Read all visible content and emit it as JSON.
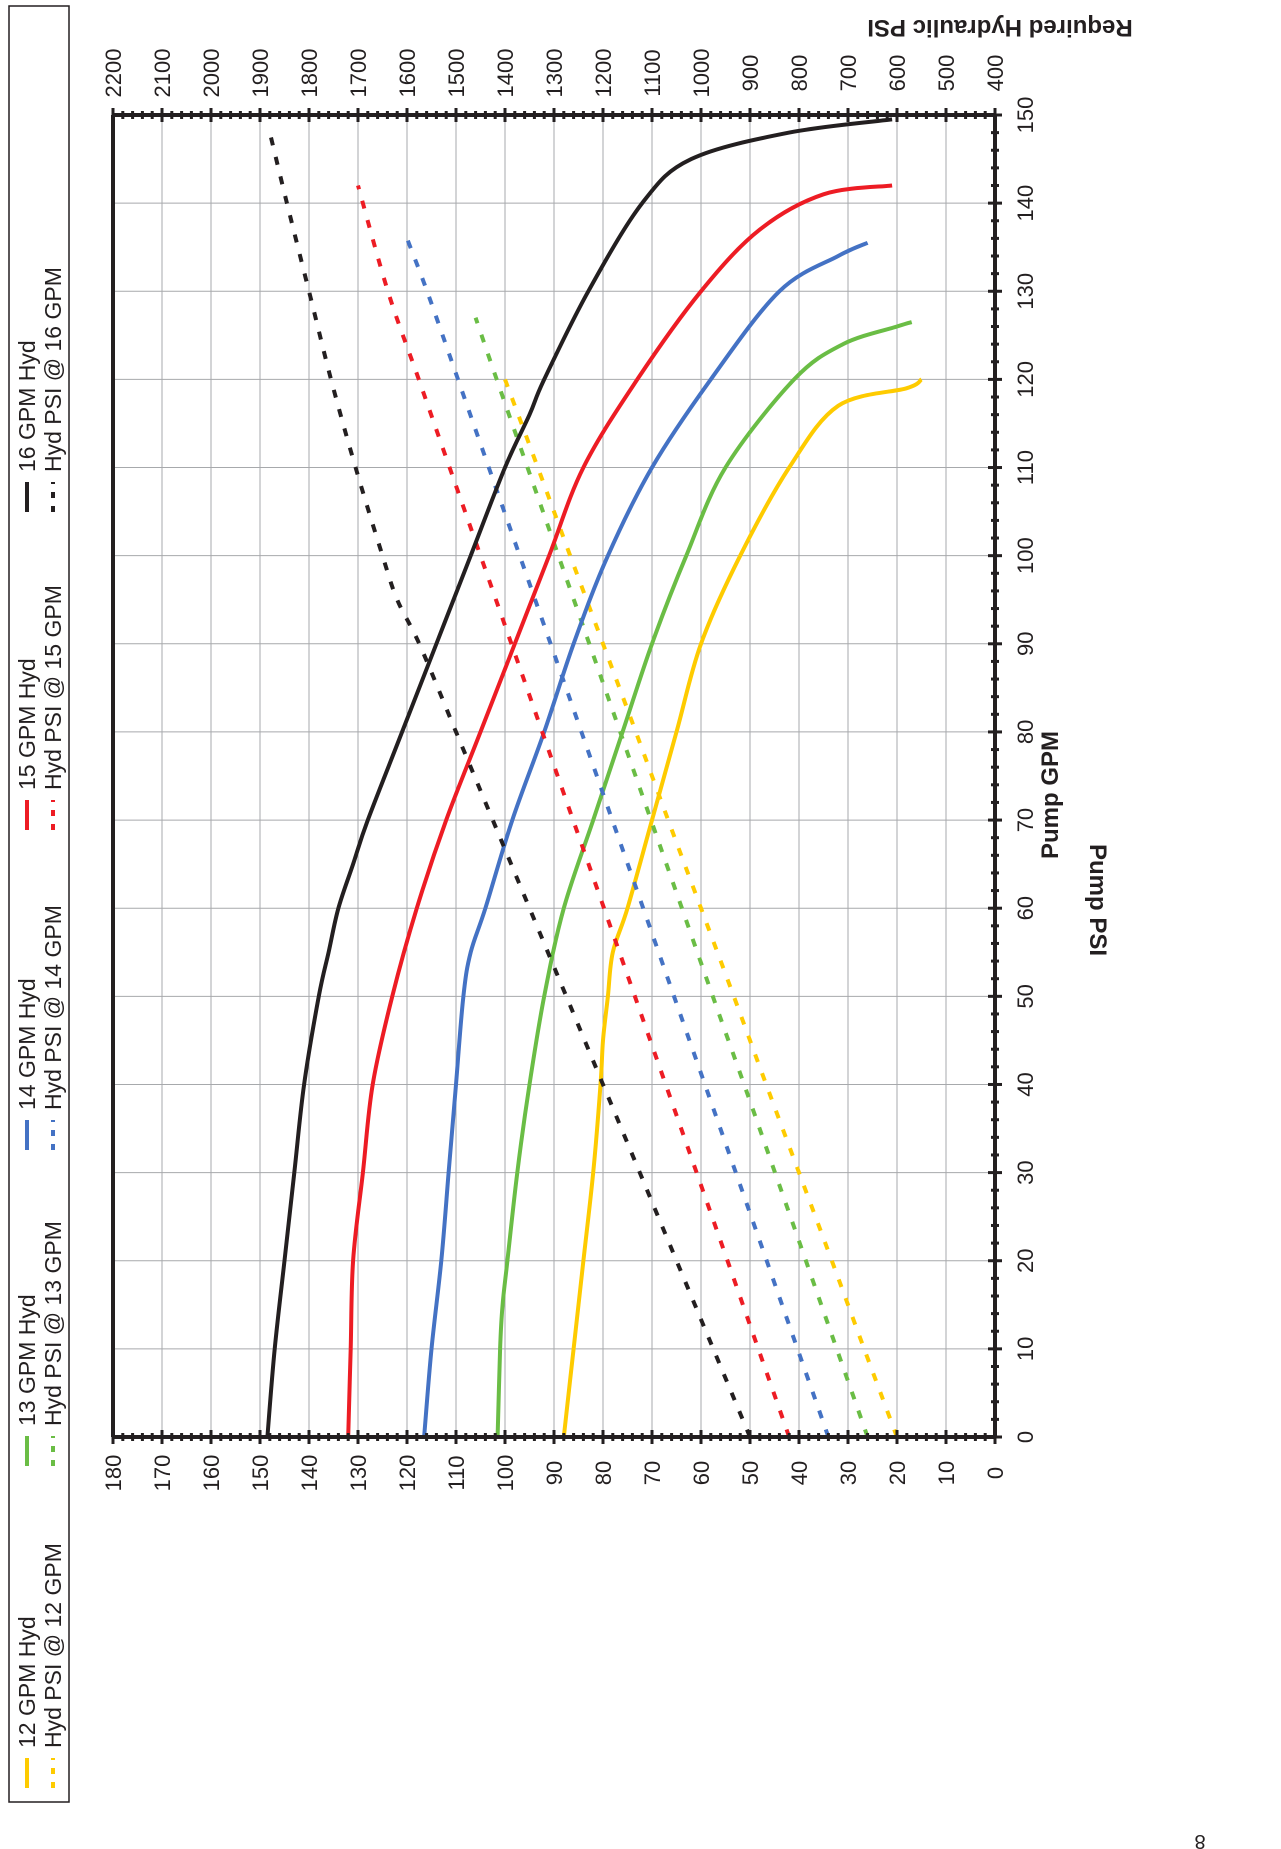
{
  "page_number": "8",
  "chart_data": {
    "type": "line",
    "orientation": "rotated-90-clockwise",
    "xlabel": "Pump GPM",
    "ylabel": "Pump PSI",
    "y2label": "Required Hydraulic PSI",
    "xlim": [
      0,
      150
    ],
    "ylim": [
      0,
      180
    ],
    "y2lim": [
      400,
      2200
    ],
    "x_ticks": [
      0,
      10,
      20,
      30,
      40,
      50,
      60,
      70,
      80,
      90,
      100,
      110,
      120,
      130,
      140,
      150
    ],
    "y_ticks": [
      0,
      10,
      20,
      30,
      40,
      50,
      60,
      70,
      80,
      90,
      100,
      110,
      120,
      130,
      140,
      150,
      160,
      170,
      180
    ],
    "y2_ticks": [
      400,
      500,
      600,
      700,
      800,
      900,
      1000,
      1100,
      1200,
      1300,
      1400,
      1500,
      1600,
      1700,
      1800,
      1900,
      2000,
      2100,
      2200
    ],
    "grid": true,
    "legend_position": "top",
    "series": [
      {
        "name": "12 GPM Hyd",
        "axis": "left",
        "style": "solid",
        "color": "#fecb00",
        "points": [
          [
            0,
            88
          ],
          [
            10,
            86
          ],
          [
            20,
            84
          ],
          [
            30,
            82
          ],
          [
            40,
            80.5
          ],
          [
            45,
            80
          ],
          [
            50,
            79
          ],
          [
            55,
            78
          ],
          [
            60,
            75
          ],
          [
            70,
            70
          ],
          [
            80,
            65
          ],
          [
            90,
            60
          ],
          [
            100,
            52
          ],
          [
            110,
            42
          ],
          [
            117,
            32
          ],
          [
            119,
            18
          ],
          [
            120,
            15
          ]
        ]
      },
      {
        "name": "Hyd PSI @ 12 GPM",
        "axis": "right",
        "style": "dashed",
        "color": "#fecb00",
        "points": [
          [
            0,
            600
          ],
          [
            10,
            667
          ],
          [
            20,
            733
          ],
          [
            30,
            800
          ],
          [
            40,
            867
          ],
          [
            50,
            933
          ],
          [
            60,
            1000
          ],
          [
            70,
            1067
          ],
          [
            80,
            1133
          ],
          [
            90,
            1200
          ],
          [
            100,
            1267
          ],
          [
            110,
            1333
          ],
          [
            120,
            1400
          ]
        ]
      },
      {
        "name": "13 GPM Hyd",
        "axis": "left",
        "style": "solid",
        "color": "#6abd45",
        "points": [
          [
            0,
            101.5
          ],
          [
            10,
            101
          ],
          [
            15,
            100.5
          ],
          [
            20,
            99.5
          ],
          [
            30,
            97.5
          ],
          [
            40,
            95
          ],
          [
            50,
            92
          ],
          [
            60,
            88
          ],
          [
            70,
            82
          ],
          [
            80,
            76
          ],
          [
            90,
            70
          ],
          [
            100,
            63
          ],
          [
            110,
            55
          ],
          [
            120,
            41
          ],
          [
            124,
            31
          ],
          [
            126,
            20
          ],
          [
            126.5,
            17
          ]
        ]
      },
      {
        "name": "Hyd PSI @ 13 GPM",
        "axis": "right",
        "style": "dashed",
        "color": "#6abd45",
        "points": [
          [
            0,
            660
          ],
          [
            10,
            723
          ],
          [
            20,
            786
          ],
          [
            30,
            849
          ],
          [
            40,
            912
          ],
          [
            50,
            976
          ],
          [
            60,
            1039
          ],
          [
            70,
            1102
          ],
          [
            80,
            1165
          ],
          [
            90,
            1228
          ],
          [
            100,
            1291
          ],
          [
            110,
            1354
          ],
          [
            120,
            1417
          ],
          [
            127,
            1460
          ]
        ]
      },
      {
        "name": "14 GPM Hyd",
        "axis": "left",
        "style": "solid",
        "color": "#4472c4",
        "points": [
          [
            0,
            116.5
          ],
          [
            10,
            115
          ],
          [
            20,
            113
          ],
          [
            30,
            111.5
          ],
          [
            40,
            110
          ],
          [
            50,
            108.5
          ],
          [
            55,
            107
          ],
          [
            60,
            104
          ],
          [
            70,
            98.5
          ],
          [
            80,
            92
          ],
          [
            90,
            86
          ],
          [
            100,
            79
          ],
          [
            110,
            70
          ],
          [
            120,
            58
          ],
          [
            130,
            44
          ],
          [
            134,
            32
          ],
          [
            135.5,
            26
          ]
        ]
      },
      {
        "name": "Hyd PSI @ 14 GPM",
        "axis": "right",
        "style": "dashed",
        "color": "#4472c4",
        "points": [
          [
            0,
            740
          ],
          [
            10,
            803
          ],
          [
            20,
            866
          ],
          [
            30,
            929
          ],
          [
            40,
            992
          ],
          [
            50,
            1055
          ],
          [
            60,
            1118
          ],
          [
            70,
            1181
          ],
          [
            80,
            1244
          ],
          [
            90,
            1307
          ],
          [
            100,
            1370
          ],
          [
            110,
            1433
          ],
          [
            120,
            1496
          ],
          [
            130,
            1559
          ],
          [
            136,
            1600
          ]
        ]
      },
      {
        "name": "15 GPM Hyd",
        "axis": "left",
        "style": "solid",
        "color": "#ed1c24",
        "points": [
          [
            0,
            132
          ],
          [
            10,
            131.5
          ],
          [
            20,
            131
          ],
          [
            30,
            129
          ],
          [
            40,
            127
          ],
          [
            50,
            123
          ],
          [
            60,
            118
          ],
          [
            70,
            112
          ],
          [
            80,
            105
          ],
          [
            90,
            98
          ],
          [
            100,
            91
          ],
          [
            110,
            84
          ],
          [
            120,
            73
          ],
          [
            130,
            60
          ],
          [
            137,
            48
          ],
          [
            141,
            35
          ],
          [
            142,
            21
          ]
        ]
      },
      {
        "name": "Hyd PSI @ 15 GPM",
        "axis": "right",
        "style": "dashed",
        "color": "#ed1c24",
        "points": [
          [
            0,
            820
          ],
          [
            10,
            883
          ],
          [
            20,
            946
          ],
          [
            30,
            1009
          ],
          [
            40,
            1072
          ],
          [
            50,
            1135
          ],
          [
            60,
            1198
          ],
          [
            70,
            1261
          ],
          [
            80,
            1324
          ],
          [
            90,
            1387
          ],
          [
            100,
            1450
          ],
          [
            110,
            1513
          ],
          [
            120,
            1576
          ],
          [
            130,
            1639
          ],
          [
            142,
            1700
          ]
        ]
      },
      {
        "name": "16 GPM Hyd",
        "axis": "left",
        "style": "solid",
        "color": "#231f20",
        "points": [
          [
            0,
            148.5
          ],
          [
            10,
            147
          ],
          [
            20,
            145
          ],
          [
            30,
            143
          ],
          [
            40,
            141
          ],
          [
            50,
            138
          ],
          [
            55,
            136
          ],
          [
            60,
            134
          ],
          [
            65,
            131
          ],
          [
            70,
            128
          ],
          [
            80,
            121
          ],
          [
            90,
            114
          ],
          [
            100,
            107
          ],
          [
            110,
            100
          ],
          [
            116,
            95
          ],
          [
            120,
            92
          ],
          [
            130,
            83
          ],
          [
            140,
            72
          ],
          [
            145,
            62
          ],
          [
            148,
            42
          ],
          [
            149.5,
            21
          ]
        ]
      },
      {
        "name": "Hyd PSI @ 16 GPM",
        "axis": "right",
        "style": "dashed",
        "color": "#231f20",
        "points": [
          [
            0,
            900
          ],
          [
            10,
            975
          ],
          [
            20,
            1050
          ],
          [
            30,
            1125
          ],
          [
            40,
            1200
          ],
          [
            50,
            1275
          ],
          [
            60,
            1350
          ],
          [
            70,
            1425
          ],
          [
            80,
            1500
          ],
          [
            90,
            1575
          ],
          [
            95,
            1620
          ],
          [
            100,
            1650
          ],
          [
            110,
            1705
          ],
          [
            120,
            1755
          ],
          [
            130,
            1800
          ],
          [
            140,
            1845
          ],
          [
            148,
            1880
          ]
        ]
      }
    ]
  }
}
